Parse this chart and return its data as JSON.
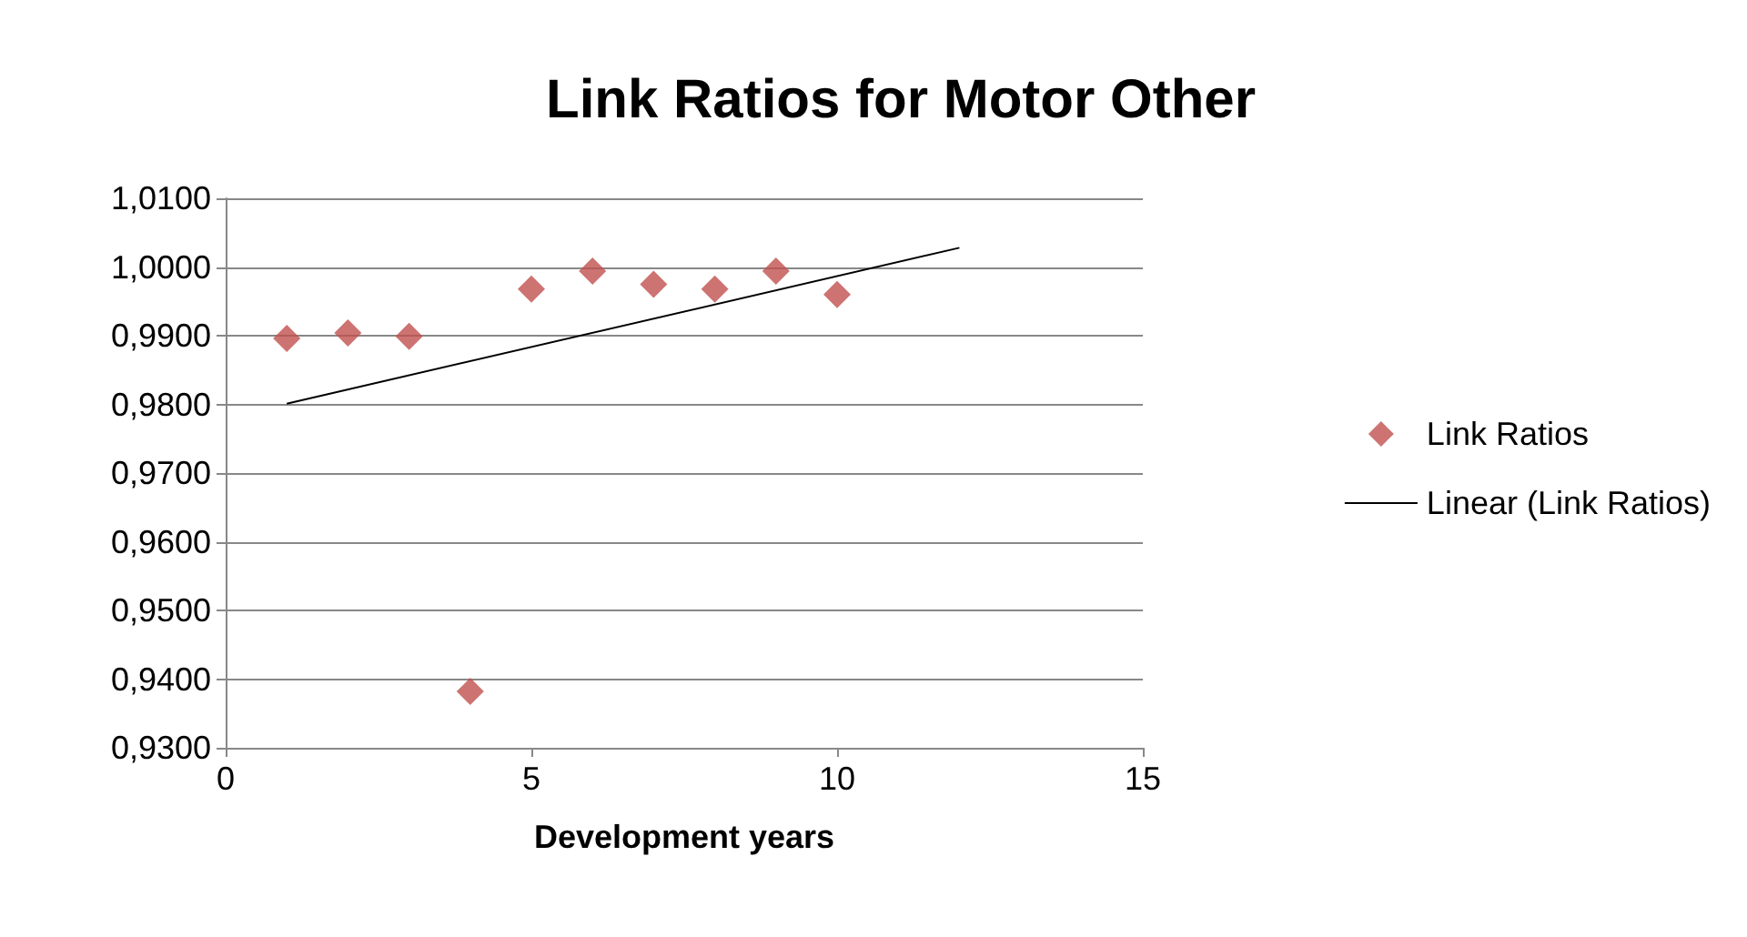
{
  "chart_data": {
    "type": "scatter",
    "title": "Link Ratios for Motor Other",
    "xlabel": "Development years",
    "series": [
      {
        "name": "Link Ratios",
        "color": "#c0504d",
        "x": [
          1,
          2,
          3,
          4,
          5,
          6,
          7,
          8,
          9,
          10
        ],
        "values": [
          0.9896,
          0.9904,
          0.9899,
          0.9382,
          0.9968,
          0.9994,
          0.9975,
          0.9968,
          0.9994,
          0.996
        ]
      },
      {
        "name": "Linear (Link Ratios)",
        "type": "line",
        "color": "#000000",
        "marker": "none",
        "x": [
          1,
          12
        ],
        "values": [
          0.9801,
          1.0028
        ]
      }
    ],
    "xlim": [
      0,
      15
    ],
    "xticks": [
      0,
      5,
      10,
      15
    ],
    "ylim": [
      0.93,
      1.01
    ],
    "yticks": [
      {
        "value": 0.93,
        "label": "0,9300"
      },
      {
        "value": 0.94,
        "label": "0,9400"
      },
      {
        "value": 0.95,
        "label": "0,9500"
      },
      {
        "value": 0.96,
        "label": "0,9600"
      },
      {
        "value": 0.97,
        "label": "0,9700"
      },
      {
        "value": 0.98,
        "label": "0,9800"
      },
      {
        "value": 0.99,
        "label": "0,9900"
      },
      {
        "value": 1.0,
        "label": "1,0000"
      },
      {
        "value": 1.01,
        "label": "1,0100"
      }
    ],
    "grid": "y",
    "legend": "right",
    "marker": "diamond",
    "line_style": "solid"
  }
}
